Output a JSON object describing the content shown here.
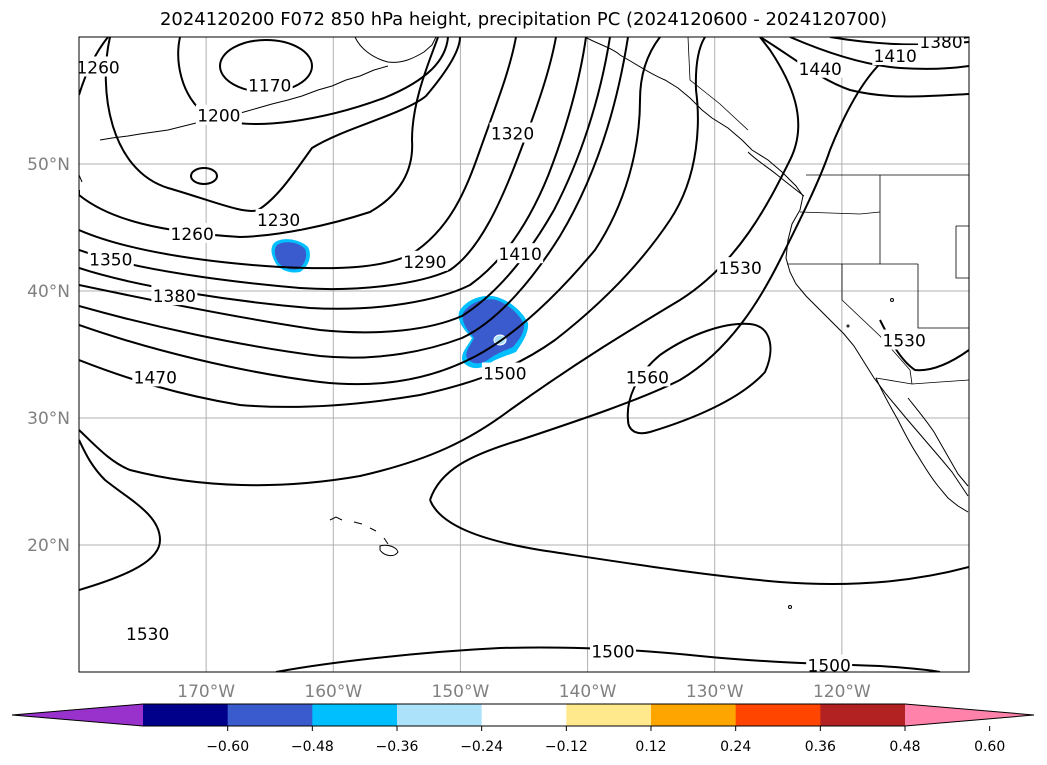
{
  "title": "2024120200 F072 850 hPa height, precipitation PC (2024120600 - 2024120700)",
  "map": {
    "lat_range": [
      10,
      60
    ],
    "lon_range": [
      -180,
      -110
    ],
    "grid": true,
    "lat_ticks": [
      {
        "value": 20,
        "label": "20°N"
      },
      {
        "value": 30,
        "label": "30°N"
      },
      {
        "value": 40,
        "label": "40°N"
      },
      {
        "value": 50,
        "label": "50°N"
      }
    ],
    "lon_ticks": [
      {
        "value": -170,
        "label": "170°W"
      },
      {
        "value": -160,
        "label": "160°W"
      },
      {
        "value": -150,
        "label": "150°W"
      },
      {
        "value": -140,
        "label": "140°W"
      },
      {
        "value": -130,
        "label": "130°W"
      },
      {
        "value": -120,
        "label": "120°W"
      }
    ],
    "tick_label_color": "#808080",
    "contour_labels": [
      {
        "text": "1260",
        "lon": -178.5,
        "lat": 57.6
      },
      {
        "text": "1170",
        "lon": -165.0,
        "lat": 56.2
      },
      {
        "text": "1200",
        "lon": -169.0,
        "lat": 53.8
      },
      {
        "text": "1230",
        "lon": -164.3,
        "lat": 45.6
      },
      {
        "text": "1260",
        "lon": -171.1,
        "lat": 44.5
      },
      {
        "text": "1350",
        "lon": -177.5,
        "lat": 42.5
      },
      {
        "text": "1380",
        "lon": -172.5,
        "lat": 39.6
      },
      {
        "text": "1290",
        "lon": -152.8,
        "lat": 42.3
      },
      {
        "text": "1320",
        "lon": -145.9,
        "lat": 52.4
      },
      {
        "text": "1410",
        "lon": -145.3,
        "lat": 42.9
      },
      {
        "text": "1380",
        "lon": -112.2,
        "lat": 59.6
      },
      {
        "text": "1410",
        "lon": -115.8,
        "lat": 58.5
      },
      {
        "text": "1440",
        "lon": -121.7,
        "lat": 57.5
      },
      {
        "text": "1470",
        "lon": -174.0,
        "lat": 33.2
      },
      {
        "text": "1500",
        "lon": -146.5,
        "lat": 33.5
      },
      {
        "text": "1530",
        "lon": -128.0,
        "lat": 41.8
      },
      {
        "text": "1560",
        "lon": -135.3,
        "lat": 33.2
      },
      {
        "text": "1530",
        "lon": -115.1,
        "lat": 36.1
      },
      {
        "text": "1530",
        "lon": -174.6,
        "lat": 13.0
      },
      {
        "text": "1500",
        "lon": -138.0,
        "lat": 11.6
      },
      {
        "text": "1500",
        "lon": -121.0,
        "lat": 10.5
      }
    ]
  },
  "colorbar": {
    "colors": [
      "#9932CC",
      "#00008B",
      "#3A5BCD",
      "#00BFFF",
      "#ADE3FA",
      "#FFFFFF",
      "#FFE98C",
      "#FFA500",
      "#FF4500",
      "#B22222",
      "#FF82AB"
    ],
    "tick_labels": [
      "−0.60",
      "−0.48",
      "−0.36",
      "−0.24",
      "−0.12",
      "0.12",
      "0.24",
      "0.36",
      "0.48",
      "0.60"
    ]
  }
}
